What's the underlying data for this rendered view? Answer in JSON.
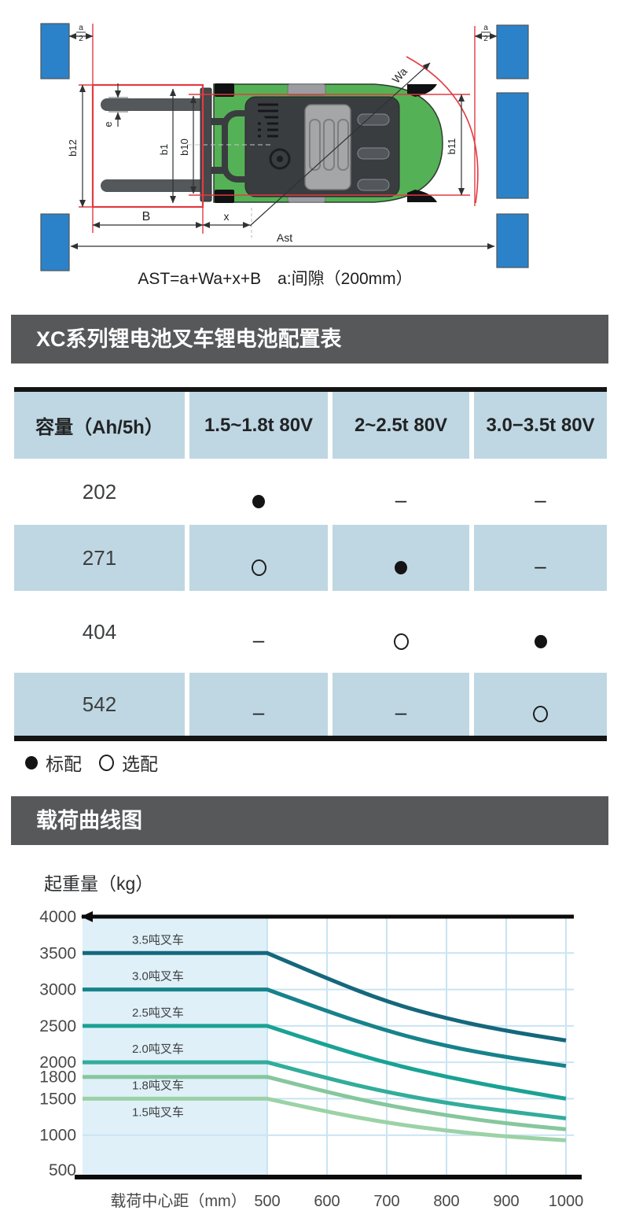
{
  "diagram": {
    "formula": "AST=a+Wa+x+B　a:间隙（200mm）",
    "labels": {
      "b12": "b12",
      "e": "e",
      "b1": "b1",
      "b10": "b10",
      "b11": "b11",
      "B": "B",
      "x": "x",
      "ast": "Ast",
      "wa": "Wa",
      "a_num": "a",
      "a_den": "2"
    },
    "colors": {
      "pallet_blue": "#2b82c9",
      "load_red": "#e23b41",
      "body_green": "#55b156",
      "frame_dark": "#3a3d40"
    }
  },
  "battery_table": {
    "section_title": "XC系列锂电池叉车锂电池配置表",
    "columns": [
      "容量（Ah/5h）",
      "1.5~1.8t 80V",
      "2~2.5t 80V",
      "3.0−3.5t 80V"
    ],
    "rows": [
      {
        "capacity": "202",
        "cells": [
          "standard",
          "none",
          "none"
        ]
      },
      {
        "capacity": "271",
        "cells": [
          "optional",
          "standard",
          "none"
        ]
      },
      {
        "capacity": "404",
        "cells": [
          "none",
          "optional",
          "standard"
        ]
      },
      {
        "capacity": "542",
        "cells": [
          "none",
          "none",
          "optional"
        ]
      }
    ],
    "legend": {
      "standard_label": "标配",
      "optional_label": "选配",
      "none_symbol": "–"
    }
  },
  "chart_data": {
    "type": "line",
    "title": "载荷曲线图",
    "xlabel": "载荷中心距（mm）",
    "ylabel": "起重量（kg）",
    "x": [
      500,
      600,
      700,
      800,
      900,
      1000
    ],
    "x_ticks": [
      500,
      600,
      700,
      800,
      900,
      1000
    ],
    "y_ticks": [
      4000,
      3500,
      3000,
      2500,
      2000,
      1800,
      1500,
      1000,
      500
    ],
    "grid_y": [
      3500,
      3000,
      2500,
      2000,
      1500,
      1000
    ],
    "ylim": [
      500,
      4000
    ],
    "flat_until_x": 500,
    "shaded_region_to_x": 500,
    "legend_position": "inline-left",
    "series": [
      {
        "name": "3.5吨叉车",
        "color": "#15677c",
        "label_dy": -12,
        "values": [
          3500,
          3150,
          2830,
          2600,
          2430,
          2300
        ]
      },
      {
        "name": "3.0吨叉车",
        "color": "#17828b",
        "label_dy": -12,
        "values": [
          3000,
          2700,
          2430,
          2220,
          2070,
          1950
        ]
      },
      {
        "name": "2.5吨叉车",
        "color": "#1aa294",
        "label_dy": -12,
        "values": [
          2500,
          2230,
          1990,
          1800,
          1640,
          1500
        ]
      },
      {
        "name": "2.0吨叉车",
        "color": "#33ac9b",
        "label_dy": -12,
        "values": [
          2000,
          1780,
          1590,
          1440,
          1330,
          1230
        ]
      },
      {
        "name": "1.8吨叉车",
        "color": "#86c79d",
        "label_dy": 16,
        "values": [
          1800,
          1590,
          1410,
          1270,
          1160,
          1080
        ]
      },
      {
        "name": "1.5吨叉车",
        "color": "#9bd2a6",
        "label_dy": 22,
        "values": [
          1500,
          1320,
          1170,
          1060,
          980,
          930
        ]
      }
    ]
  }
}
